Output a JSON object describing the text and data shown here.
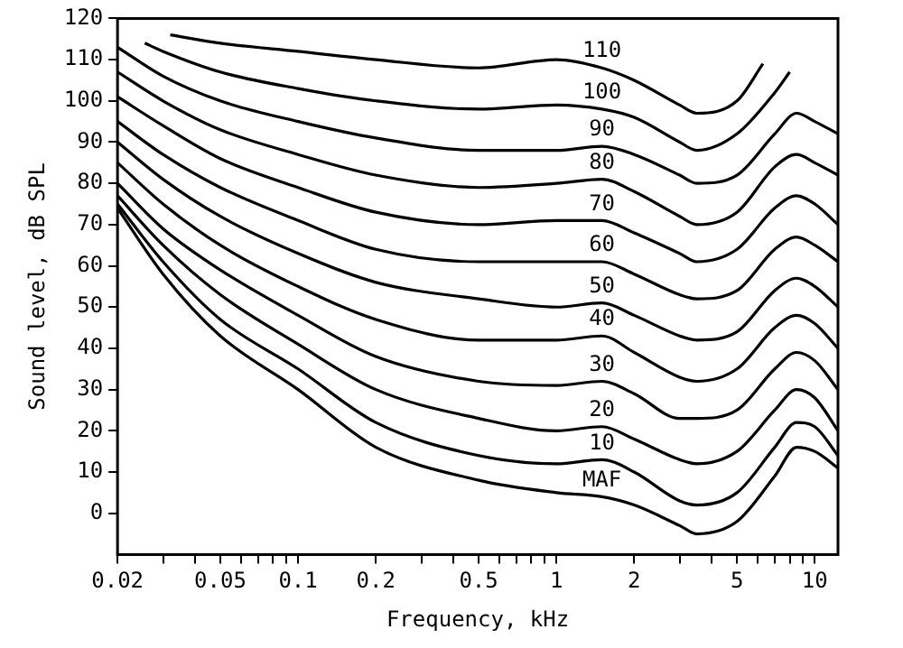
{
  "chart_data": {
    "type": "line",
    "xlabel": "Frequency, kHz",
    "ylabel": "Sound level, dB SPL",
    "log": "x",
    "grid": false,
    "legend": false,
    "marker": "none",
    "line_style": "solid",
    "xlim": [
      0.02,
      12.3
    ],
    "ylim": [
      -10,
      120
    ],
    "xticks": [
      0.02,
      {
        "value": 0.03,
        "label": null
      },
      {
        "value": 0.04,
        "label": null
      },
      0.05,
      {
        "value": 0.06,
        "label": null
      },
      {
        "value": 0.07,
        "label": null
      },
      {
        "value": 0.08,
        "label": null
      },
      {
        "value": 0.09,
        "label": null
      },
      0.1,
      0.2,
      {
        "value": 0.3,
        "label": null
      },
      {
        "value": 0.4,
        "label": null
      },
      0.5,
      {
        "value": 0.6,
        "label": null
      },
      {
        "value": 0.7,
        "label": null
      },
      {
        "value": 0.8,
        "label": null
      },
      {
        "value": 0.9,
        "label": null
      },
      1,
      2,
      {
        "value": 3,
        "label": null
      },
      {
        "value": 4,
        "label": null
      },
      5,
      {
        "value": 6,
        "label": null
      },
      {
        "value": 7,
        "label": null
      },
      {
        "value": 8,
        "label": null
      },
      {
        "value": 9,
        "label": null
      },
      10
    ],
    "yticks": [
      0,
      10,
      20,
      30,
      40,
      50,
      60,
      70,
      80,
      90,
      100,
      110,
      120
    ],
    "series": [
      {
        "name": "110",
        "color": "#000000",
        "x": [
          0.032,
          0.05,
          0.1,
          0.2,
          0.5,
          1,
          1.5,
          2,
          3,
          3.5,
          5,
          6.3
        ],
        "values": [
          116,
          114,
          112,
          110,
          108,
          110,
          108,
          105,
          99,
          97,
          100,
          109
        ]
      },
      {
        "name": "100",
        "color": "#000000",
        "x": [
          0.0255,
          0.03,
          0.05,
          0.1,
          0.2,
          0.5,
          1,
          1.5,
          2,
          3,
          3.5,
          5,
          7,
          8
        ],
        "values": [
          114,
          112,
          107,
          103,
          100,
          98,
          99,
          98,
          96,
          90,
          88,
          92,
          102,
          107
        ]
      },
      {
        "name": "90",
        "color": "#000000",
        "x": [
          0.02,
          0.03,
          0.05,
          0.1,
          0.2,
          0.5,
          1,
          1.5,
          2,
          3,
          3.5,
          5,
          7,
          8.5,
          10,
          12.3
        ],
        "values": [
          113,
          106,
          100,
          95,
          91,
          88,
          88,
          89,
          87,
          82,
          80,
          82,
          92,
          97,
          95,
          92
        ]
      },
      {
        "name": "80",
        "color": "#000000",
        "x": [
          0.02,
          0.03,
          0.05,
          0.1,
          0.2,
          0.5,
          1,
          1.5,
          2,
          3,
          3.5,
          5,
          7,
          8.5,
          10,
          12.3
        ],
        "values": [
          107,
          100,
          93,
          87,
          82,
          79,
          80,
          81,
          78,
          72,
          70,
          73,
          84,
          87,
          85,
          82
        ]
      },
      {
        "name": "70",
        "color": "#000000",
        "x": [
          0.02,
          0.03,
          0.05,
          0.1,
          0.2,
          0.5,
          1,
          1.5,
          2,
          3,
          3.5,
          5,
          7,
          8.5,
          10,
          12.3
        ],
        "values": [
          101,
          94,
          86,
          79,
          73,
          70,
          71,
          71,
          68,
          63,
          61,
          64,
          74,
          77,
          75,
          70
        ]
      },
      {
        "name": "60",
        "color": "#000000",
        "x": [
          0.02,
          0.03,
          0.05,
          0.1,
          0.2,
          0.5,
          1,
          1.5,
          2,
          3,
          3.5,
          5,
          7,
          8.5,
          10,
          12.3
        ],
        "values": [
          95,
          87,
          79,
          71,
          64,
          61,
          61,
          61,
          58,
          53,
          52,
          54,
          64,
          67,
          65,
          61
        ]
      },
      {
        "name": "50",
        "color": "#000000",
        "x": [
          0.02,
          0.03,
          0.05,
          0.1,
          0.2,
          0.5,
          1,
          1.5,
          2,
          3,
          3.5,
          5,
          7,
          8.5,
          10,
          12.3
        ],
        "values": [
          90,
          81,
          72,
          63,
          56,
          52,
          50,
          51,
          48,
          43,
          42,
          44,
          54,
          57,
          55,
          50
        ]
      },
      {
        "name": "40",
        "color": "#000000",
        "x": [
          0.02,
          0.03,
          0.05,
          0.1,
          0.2,
          0.5,
          1,
          1.5,
          2,
          3,
          3.5,
          5,
          7,
          8.5,
          10,
          12.3
        ],
        "values": [
          85,
          75,
          65,
          55,
          47,
          42,
          42,
          43,
          39,
          33,
          32,
          35,
          45,
          48,
          46,
          40
        ]
      },
      {
        "name": "30",
        "color": "#000000",
        "x": [
          0.02,
          0.03,
          0.05,
          0.1,
          0.2,
          0.5,
          1,
          1.5,
          2,
          3,
          3.5,
          5,
          7,
          8.5,
          10,
          12.3
        ],
        "values": [
          80,
          69,
          59,
          48,
          38,
          32,
          31,
          32,
          29,
          23,
          23,
          25,
          35,
          39,
          37,
          30
        ]
      },
      {
        "name": "20",
        "color": "#000000",
        "x": [
          0.02,
          0.03,
          0.05,
          0.1,
          0.2,
          0.5,
          1,
          1.5,
          2,
          3,
          3.5,
          5,
          7,
          8.5,
          10,
          12.3
        ],
        "values": [
          77,
          65,
          53,
          41,
          30,
          23,
          20,
          21,
          18,
          13,
          12,
          15,
          25,
          30,
          28,
          20
        ]
      },
      {
        "name": "10",
        "color": "#000000",
        "x": [
          0.02,
          0.03,
          0.05,
          0.1,
          0.2,
          0.5,
          1,
          1.5,
          2,
          3,
          3.5,
          5,
          7,
          8.5,
          10,
          12.3
        ],
        "values": [
          75,
          61,
          47,
          35,
          22,
          14,
          12,
          13,
          10,
          3,
          2,
          5,
          16,
          22,
          21,
          14
        ]
      },
      {
        "name": "MAF",
        "color": "#000000",
        "x": [
          0.02,
          0.03,
          0.05,
          0.1,
          0.2,
          0.5,
          1,
          1.5,
          2,
          3,
          3.5,
          5,
          7,
          8.5,
          10,
          12.3
        ],
        "values": [
          74,
          58,
          43,
          30,
          16,
          8,
          5,
          4,
          2,
          -3,
          -5,
          -2,
          9,
          16,
          15,
          11
        ]
      }
    ]
  }
}
